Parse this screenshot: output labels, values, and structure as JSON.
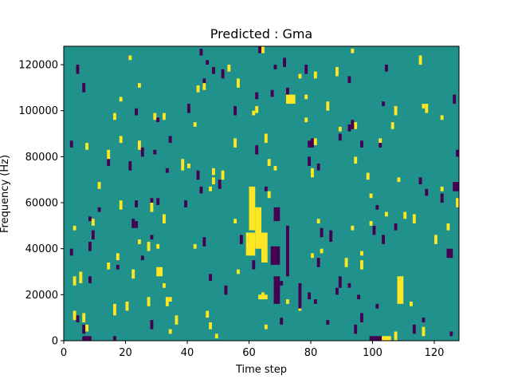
{
  "chart_data": {
    "type": "heatmap",
    "title": "Predicted : Gma",
    "xlabel": "Time step",
    "ylabel": "Frequency (Hz)",
    "xlim": [
      0,
      128
    ],
    "ylim": [
      0,
      128000
    ],
    "xticks": [
      0,
      20,
      40,
      60,
      80,
      100,
      120
    ],
    "yticks": [
      0,
      20000,
      40000,
      60000,
      80000,
      100000,
      120000
    ],
    "xtick_labels": [
      "0",
      "20",
      "40",
      "60",
      "80",
      "100",
      "120"
    ],
    "ytick_labels": [
      "0",
      "20000",
      "40000",
      "60000",
      "80000",
      "100000",
      "120000"
    ],
    "grid": false,
    "colormap": "viridis",
    "colors": {
      "background": "#21918c",
      "high": "#fde725",
      "low": "#440154"
    },
    "n_columns": 128,
    "n_rows": 128,
    "dominant_value": 0,
    "high_value": 1,
    "low_value": -1,
    "cells": [
      {
        "x0": 6,
        "x1": 9,
        "y0": 0,
        "y1": 2,
        "v": -1
      },
      {
        "x0": 99,
        "x1": 103,
        "y0": 0,
        "y1": 2,
        "v": -1
      },
      {
        "x0": 103,
        "x1": 106,
        "y0": 0,
        "y1": 2,
        "v": 1
      },
      {
        "x0": 59,
        "x1": 62,
        "y0": 37,
        "y1": 47,
        "v": 1
      },
      {
        "x0": 60,
        "x1": 62,
        "y0": 48,
        "y1": 67,
        "v": 1
      },
      {
        "x0": 62,
        "x1": 64,
        "y0": 40,
        "y1": 58,
        "v": 1
      },
      {
        "x0": 64,
        "x1": 66,
        "y0": 34,
        "y1": 47,
        "v": 1
      },
      {
        "x0": 67,
        "x1": 70,
        "y0": 33,
        "y1": 41,
        "v": -1
      },
      {
        "x0": 68,
        "x1": 70,
        "y0": 52,
        "y1": 58,
        "v": -1
      },
      {
        "x0": 68,
        "x1": 70,
        "y0": 16,
        "y1": 28,
        "v": -1
      },
      {
        "x0": 72,
        "x1": 73,
        "y0": 28,
        "y1": 50,
        "v": -1
      },
      {
        "x0": 76,
        "x1": 77,
        "y0": 14,
        "y1": 25,
        "v": -1
      },
      {
        "x0": 108,
        "x1": 110,
        "y0": 16,
        "y1": 28,
        "v": 1
      },
      {
        "x0": 30,
        "x1": 32,
        "y0": 28,
        "y1": 32,
        "v": 1
      },
      {
        "x0": 72,
        "x1": 75,
        "y0": 103,
        "y1": 107,
        "v": 1
      },
      {
        "x0": 63,
        "x1": 66,
        "y0": 18,
        "y1": 20,
        "v": 1
      },
      {
        "x0": 61,
        "x1": 62,
        "y0": 98,
        "y1": 100,
        "v": 1
      },
      {
        "x0": 93,
        "x1": 94,
        "y0": 92,
        "y1": 96,
        "v": -1
      },
      {
        "x0": 96,
        "x1": 97,
        "y0": 31,
        "y1": 35,
        "v": 1
      },
      {
        "x0": 89,
        "x1": 90,
        "y0": 23,
        "y1": 28,
        "v": -1
      },
      {
        "x0": 71,
        "x1": 72,
        "y0": 119,
        "y1": 123,
        "v": -1
      },
      {
        "x0": 85,
        "x1": 86,
        "y0": 100,
        "y1": 104,
        "v": 1
      },
      {
        "x0": 5,
        "x1": 6,
        "y0": 25,
        "y1": 30,
        "v": 1
      },
      {
        "x0": 16,
        "x1": 17,
        "y0": 11,
        "y1": 16,
        "v": 1
      },
      {
        "x0": 22,
        "x1": 23,
        "y0": 27,
        "y1": 31,
        "v": 1
      },
      {
        "x0": 28,
        "x1": 29,
        "y0": 5,
        "y1": 9,
        "v": -1
      },
      {
        "x0": 38,
        "x1": 39,
        "y0": 74,
        "y1": 79,
        "v": 1
      },
      {
        "x0": 52,
        "x1": 53,
        "y0": 20,
        "y1": 24,
        "v": -1
      },
      {
        "x0": 86,
        "x1": 87,
        "y0": 43,
        "y1": 48,
        "v": -1
      },
      {
        "x0": 113,
        "x1": 114,
        "y0": 3,
        "y1": 7,
        "v": -1
      },
      {
        "x0": 116,
        "x1": 117,
        "y0": 2,
        "y1": 6,
        "v": 1
      },
      {
        "x0": 120,
        "x1": 121,
        "y0": 42,
        "y1": 46,
        "v": 1
      },
      {
        "x0": 124,
        "x1": 126,
        "y0": 36,
        "y1": 40,
        "v": -1
      },
      {
        "x0": 127,
        "x1": 128,
        "y0": 58,
        "y1": 62,
        "v": 1
      },
      {
        "x0": 126,
        "x1": 128,
        "y0": 65,
        "y1": 69,
        "v": -1
      },
      {
        "x0": 126,
        "x1": 127,
        "y0": 103,
        "y1": 107,
        "v": -1
      }
    ]
  }
}
